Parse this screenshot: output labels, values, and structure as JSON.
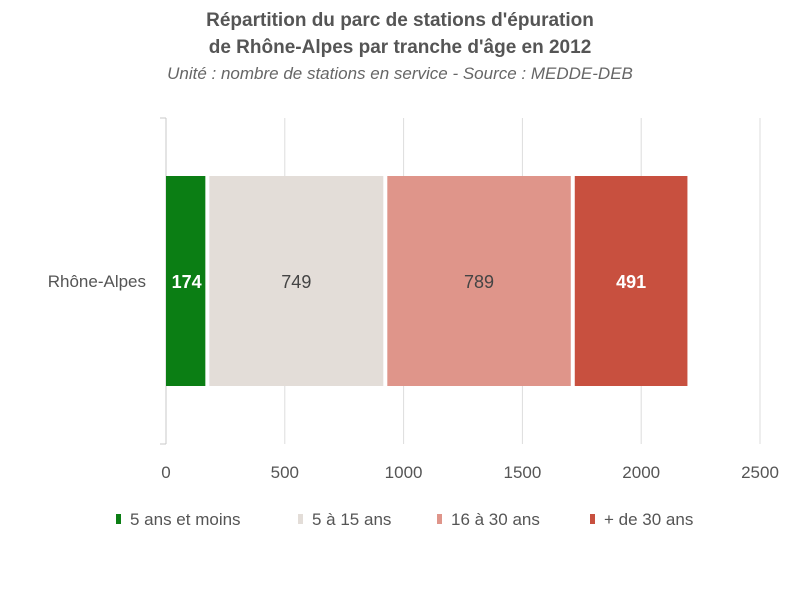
{
  "chart_data": {
    "type": "bar",
    "orientation": "horizontal",
    "stacked": true,
    "title_lines": [
      "Répartition du parc de stations d'épuration",
      "de Rhône-Alpes par tranche d'âge en 2012"
    ],
    "subtitle": "Unité : nombre de stations en service - Source : MEDDE-DEB",
    "categories": [
      "Rhône-Alpes"
    ],
    "series": [
      {
        "name": "5 ans et moins",
        "values": [
          174
        ],
        "color": "#0b7e14",
        "label_color": "#ffffff"
      },
      {
        "name": "5 à 15 ans",
        "values": [
          749
        ],
        "color": "#e3ddd8",
        "label_color": "#444444"
      },
      {
        "name": "16 à 30 ans",
        "values": [
          789
        ],
        "color": "#df958a",
        "label_color": "#444444"
      },
      {
        "name": "+ de 30 ans",
        "values": [
          491
        ],
        "color": "#c8503f",
        "label_color": "#ffffff"
      }
    ],
    "xlim": [
      0,
      2500
    ],
    "x_ticks": [
      0,
      500,
      1000,
      1500,
      2000,
      2500
    ],
    "grid": true,
    "legend_position": "bottom"
  }
}
